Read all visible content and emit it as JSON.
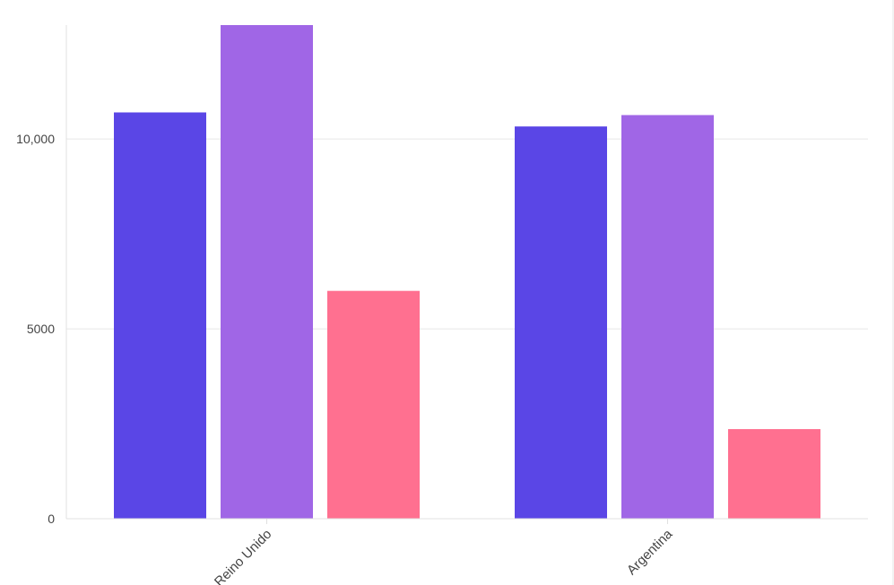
{
  "chart_data": {
    "type": "bar",
    "categories": [
      "Reino Unido",
      "Argentina"
    ],
    "series": [
      {
        "values": [
          10700,
          10330
        ],
        "color": "#5a46e6"
      },
      {
        "values": [
          13000,
          10630
        ],
        "color": "#a066e6"
      },
      {
        "values": [
          6000,
          2360
        ],
        "color": "#ff7090"
      }
    ],
    "ylim": [
      0,
      13000
    ],
    "yticks": [
      0,
      5000,
      10000
    ],
    "ytick_labels": [
      "0",
      "5000",
      "10,000"
    ],
    "xlabel": "",
    "ylabel": "",
    "title": "",
    "grid": true,
    "legend": "none"
  }
}
